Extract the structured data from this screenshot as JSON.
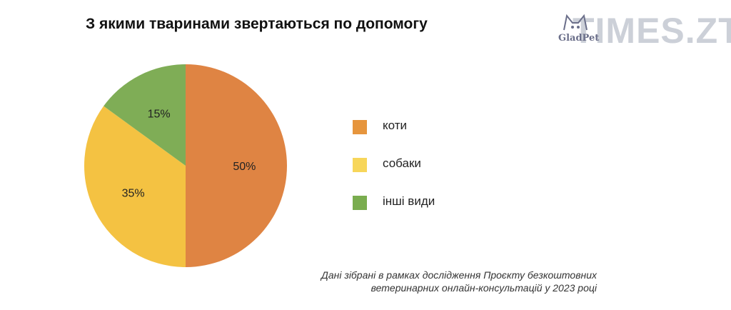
{
  "header": {
    "title": "З якими тваринами звертаються по допомогу"
  },
  "logo": {
    "brand": "GladPet",
    "site": "TIMES.ZT"
  },
  "chart_data": {
    "type": "pie",
    "title": "З якими тваринами звертаються по допомогу",
    "slices": [
      {
        "label": "коти",
        "value": 50,
        "display": "50%",
        "color": "#df8443"
      },
      {
        "label": "собаки",
        "value": 35,
        "display": "35%",
        "color": "#f4c242"
      },
      {
        "label": "інші види",
        "value": 15,
        "display": "15%",
        "color": "#7fad56"
      }
    ],
    "legend_position": "right"
  },
  "legend": {
    "items": [
      {
        "label": "коти",
        "color": "#e6953d"
      },
      {
        "label": "собаки",
        "color": "#f7d65a"
      },
      {
        "label": "інші види",
        "color": "#7aad4f"
      }
    ]
  },
  "footnote": {
    "line1": "Дані зібрані в рамках дослідження Проєкту безкоштовних",
    "line2": "ветеринарних онлайн-консультацій у 2023 році"
  }
}
